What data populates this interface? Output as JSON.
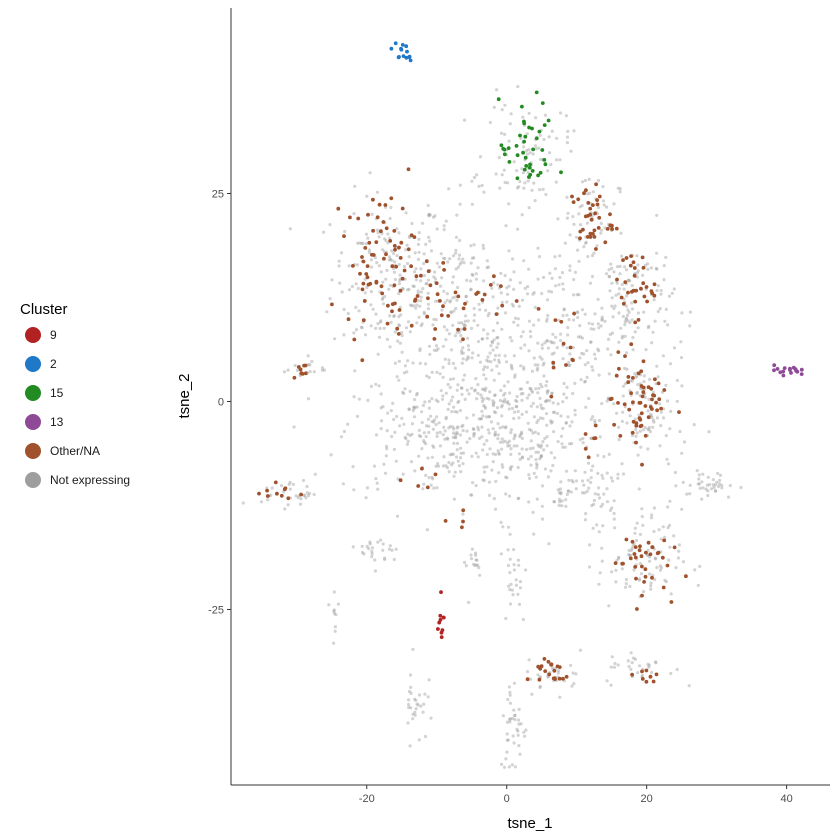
{
  "chart_data": {
    "type": "scatter",
    "xlabel": "tsne_1",
    "ylabel": "tsne_2",
    "xlim": [
      -39.4,
      46.2
    ],
    "ylim": [
      -46.1,
      47.3
    ],
    "x_ticks": [
      -20,
      0,
      20,
      40
    ],
    "y_ticks": [
      -25,
      0,
      25
    ],
    "grid": false,
    "legend_title": "Cluster",
    "legend_position": "left",
    "legend": [
      {
        "label": "9",
        "color": "#b22222"
      },
      {
        "label": "2",
        "color": "#1f78c8"
      },
      {
        "label": "15",
        "color": "#228b22"
      },
      {
        "label": "13",
        "color": "#8e4a96"
      },
      {
        "label": "Other/NA",
        "color": "#a0522d"
      },
      {
        "label": "Not expressing",
        "color": "#9e9e9e"
      }
    ],
    "series": [
      {
        "name": "Not expressing",
        "color": "#9e9e9e",
        "point_groups": [
          {
            "cx": -17,
            "cy": 15,
            "sx": 4,
            "sy": 5,
            "n": 180
          },
          {
            "cx": -8,
            "cy": 12,
            "sx": 5,
            "sy": 6,
            "n": 160
          },
          {
            "cx": -2,
            "cy": 4,
            "sx": 6,
            "sy": 7,
            "n": 260
          },
          {
            "cx": -10,
            "cy": -4,
            "sx": 7,
            "sy": 4,
            "n": 220
          },
          {
            "cx": 3,
            "cy": -4,
            "sx": 6,
            "sy": 5,
            "n": 200
          },
          {
            "cx": 10,
            "cy": 8,
            "sx": 4,
            "sy": 5,
            "n": 120
          },
          {
            "cx": 18,
            "cy": 12,
            "sx": 3,
            "sy": 4,
            "n": 110
          },
          {
            "cx": 20,
            "cy": -2,
            "sx": 3,
            "sy": 4,
            "n": 100
          },
          {
            "cx": 3,
            "cy": 30,
            "sx": 3,
            "sy": 3,
            "n": 90
          },
          {
            "cx": 12,
            "cy": 22,
            "sx": 2,
            "sy": 3,
            "n": 60
          },
          {
            "cx": 19,
            "cy": -19,
            "sx": 3,
            "sy": 3,
            "n": 90
          },
          {
            "cx": 29,
            "cy": -10,
            "sx": 2,
            "sy": 0.8,
            "n": 40
          },
          {
            "cx": -31,
            "cy": -11,
            "sx": 2,
            "sy": 0.8,
            "n": 30
          },
          {
            "cx": -29,
            "cy": 4,
            "sx": 1.5,
            "sy": 0.7,
            "n": 20
          },
          {
            "cx": -18,
            "cy": -18,
            "sx": 1.5,
            "sy": 1,
            "n": 25
          },
          {
            "cx": -5,
            "cy": -19,
            "sx": 1,
            "sy": 1,
            "n": 15
          },
          {
            "cx": 1,
            "cy": -21,
            "sx": 1,
            "sy": 3,
            "n": 25
          },
          {
            "cx": 7,
            "cy": -33,
            "sx": 2,
            "sy": 1,
            "n": 30
          },
          {
            "cx": 19,
            "cy": -32,
            "sx": 2.5,
            "sy": 1,
            "n": 30
          },
          {
            "cx": 1,
            "cy": -39,
            "sx": 1,
            "sy": 3,
            "n": 40
          },
          {
            "cx": -13,
            "cy": -36,
            "sx": 0.8,
            "sy": 2.5,
            "n": 30
          },
          {
            "cx": -24.5,
            "cy": -25,
            "sx": 0.4,
            "sy": 1.5,
            "n": 10
          },
          {
            "cx": 13,
            "cy": -11,
            "sx": 1.5,
            "sy": 3,
            "n": 40
          },
          {
            "cx": 8,
            "cy": -11,
            "sx": 1.5,
            "sy": 1,
            "n": 20
          }
        ]
      },
      {
        "name": "Other/NA",
        "color": "#a0522d",
        "point_groups": [
          {
            "cx": -18,
            "cy": 17,
            "sx": 2.5,
            "sy": 4,
            "n": 70
          },
          {
            "cx": -10,
            "cy": 12,
            "sx": 3,
            "sy": 3,
            "n": 25
          },
          {
            "cx": -2,
            "cy": 12,
            "sx": 2,
            "sy": 2,
            "n": 12
          },
          {
            "cx": 12,
            "cy": 22,
            "sx": 1.5,
            "sy": 2,
            "n": 35
          },
          {
            "cx": 18,
            "cy": 14,
            "sx": 1.5,
            "sy": 2,
            "n": 30
          },
          {
            "cx": 19,
            "cy": 0,
            "sx": 2,
            "sy": 3,
            "n": 55
          },
          {
            "cx": 19,
            "cy": -19,
            "sx": 2,
            "sy": 2,
            "n": 35
          },
          {
            "cx": 6,
            "cy": -32.5,
            "sx": 1.5,
            "sy": 1,
            "n": 20
          },
          {
            "cx": 20,
            "cy": -33,
            "sx": 1.5,
            "sy": 0.6,
            "n": 8
          },
          {
            "cx": -30,
            "cy": 4,
            "sx": 1,
            "sy": 0.5,
            "n": 8
          },
          {
            "cx": -32,
            "cy": -11,
            "sx": 1.5,
            "sy": 0.6,
            "n": 10
          },
          {
            "cx": 8,
            "cy": 7,
            "sx": 2,
            "sy": 3,
            "n": 12
          },
          {
            "cx": 12,
            "cy": -6,
            "sx": 1,
            "sy": 3,
            "n": 6
          },
          {
            "cx": -13,
            "cy": -10,
            "sx": 2,
            "sy": 1,
            "n": 5
          },
          {
            "cx": -7,
            "cy": -14,
            "sx": 1,
            "sy": 1,
            "n": 4
          }
        ]
      },
      {
        "name": "9",
        "color": "#b22222",
        "point_groups": [
          {
            "cx": -9.5,
            "cy": -26.5,
            "sx": 0.3,
            "sy": 1,
            "n": 10
          }
        ]
      },
      {
        "name": "2",
        "color": "#1f78c8",
        "point_groups": [
          {
            "cx": -15,
            "cy": 42,
            "sx": 0.8,
            "sy": 0.6,
            "n": 14
          }
        ]
      },
      {
        "name": "15",
        "color": "#228b22",
        "point_groups": [
          {
            "cx": 3,
            "cy": 30,
            "sx": 2,
            "sy": 3,
            "n": 40
          }
        ]
      },
      {
        "name": "13",
        "color": "#8e4a96",
        "point_groups": [
          {
            "cx": 40,
            "cy": 3.8,
            "sx": 0.9,
            "sy": 0.3,
            "n": 16
          }
        ]
      }
    ]
  }
}
